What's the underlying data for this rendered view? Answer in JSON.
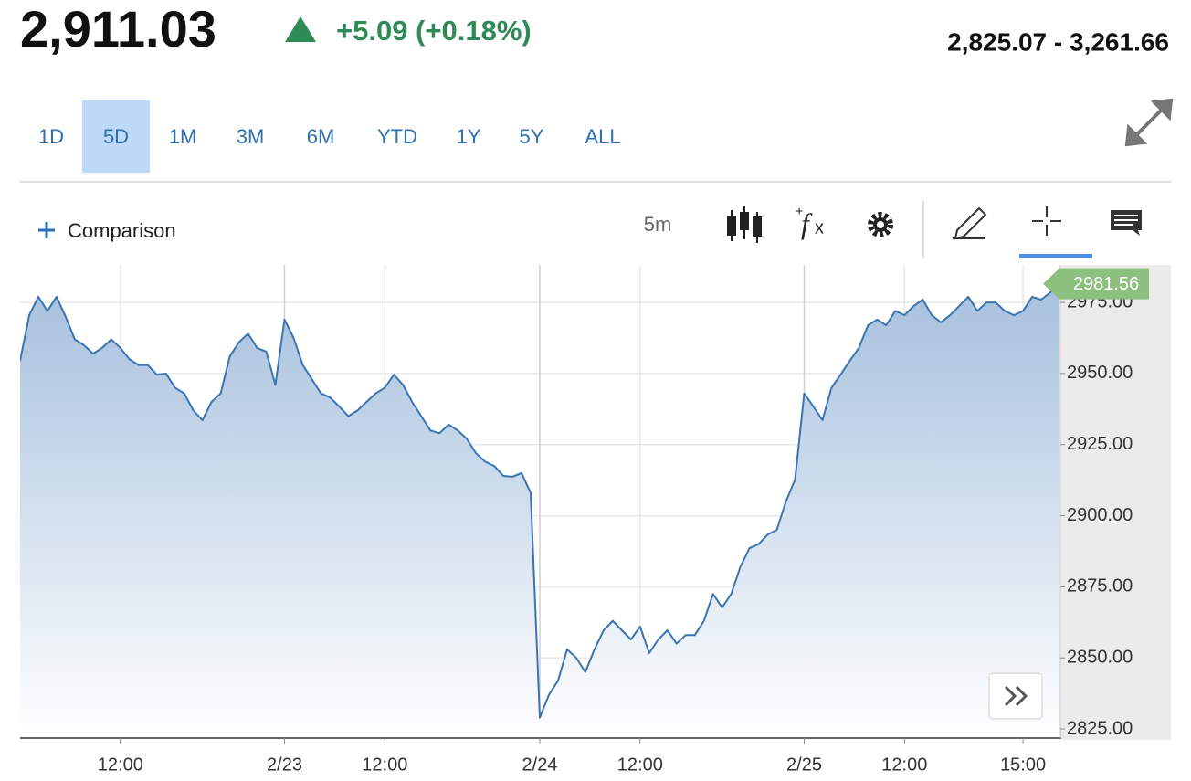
{
  "header": {
    "price": "2,911.03",
    "change": "+5.09 (+0.18%)",
    "range": "2,825.07 - 3,261.66"
  },
  "tabs": [
    "1D",
    "5D",
    "1M",
    "3M",
    "6M",
    "YTD",
    "1Y",
    "5Y",
    "ALL"
  ],
  "selected_tab": "5D",
  "toolbar": {
    "comparison": "Comparison",
    "interval": "5m"
  },
  "chart_data": {
    "type": "area",
    "values": [
      2954.5,
      2970.5,
      2977,
      2972,
      2977,
      2970,
      2962,
      2960,
      2957,
      2959,
      2962,
      2959,
      2955,
      2953,
      2953,
      2949.6,
      2950,
      2945,
      2943,
      2937,
      2933.6,
      2940,
      2943,
      2956,
      2961,
      2964,
      2959,
      2957.7,
      2946,
      2969,
      2962.5,
      2953,
      2948,
      2943,
      2941.6,
      2938.4,
      2935,
      2937,
      2940,
      2943,
      2945,
      2949.6,
      2946,
      2940,
      2935,
      2930,
      2929,
      2932,
      2930,
      2927,
      2922,
      2919,
      2917.5,
      2914,
      2913.7,
      2915,
      2908,
      2829,
      2837,
      2842,
      2853,
      2850,
      2845,
      2853,
      2859.7,
      2863,
      2859.7,
      2856.5,
      2861,
      2851.7,
      2856.5,
      2859.7,
      2855,
      2858,
      2858,
      2863,
      2872.5,
      2867.7,
      2872.5,
      2882,
      2888.6,
      2890,
      2893.4,
      2895,
      2905,
      2912.7,
      2943,
      2938.4,
      2933.6,
      2945,
      2949.6,
      2954.5,
      2959,
      2967,
      2969,
      2967,
      2972,
      2970.5,
      2973.7,
      2976,
      2970.5,
      2968,
      2970.5,
      2973.7,
      2977,
      2972,
      2975,
      2975,
      2972,
      2970.5,
      2972,
      2977,
      2976,
      2978.5,
      2981.56
    ],
    "color": "#3a74b1",
    "xlim": [
      0,
      114
    ],
    "xticks": [
      {
        "value": 11,
        "label": "12:00"
      },
      {
        "value": 29,
        "label": "2/23"
      },
      {
        "value": 40,
        "label": "12:00"
      },
      {
        "value": 57,
        "label": "2/24"
      },
      {
        "value": 68,
        "label": "12:00"
      },
      {
        "value": 86,
        "label": "2/25"
      },
      {
        "value": 97,
        "label": "12:00"
      },
      {
        "value": 110,
        "label": "15:00"
      }
    ],
    "ylim": [
      2821.8,
      2988.2
    ],
    "yticks": [
      {
        "value": 2825,
        "label": "2825.00"
      },
      {
        "value": 2850,
        "label": "2850.00"
      },
      {
        "value": 2875,
        "label": "2875.00"
      },
      {
        "value": 2900,
        "label": "2900.00"
      },
      {
        "value": 2925,
        "label": "2925.00"
      },
      {
        "value": 2950,
        "label": "2950.00"
      },
      {
        "value": 2975,
        "label": "2975.00"
      }
    ],
    "grid": true
  }
}
